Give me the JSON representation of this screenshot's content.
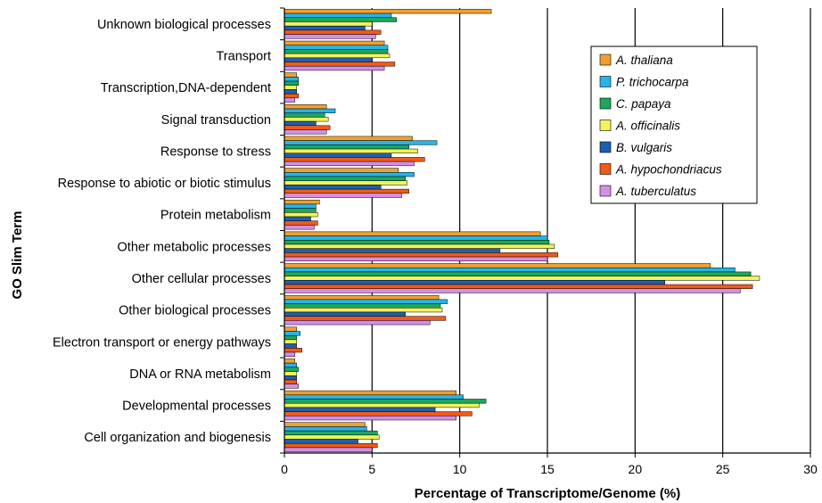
{
  "chart_data": {
    "type": "bar",
    "orientation": "horizontal",
    "title": "",
    "xlabel": "Percentage of Transcriptome/Genome (%)",
    "ylabel": "GO Slim Term",
    "xlim": [
      0,
      30
    ],
    "xticks": [
      "0",
      "5",
      "10",
      "15",
      "20",
      "25",
      "30"
    ],
    "grid": "vertical",
    "legend_position": "top-right",
    "categories": [
      "Unknown biological processes",
      "Transport",
      "Transcription,DNA-dependent",
      "Signal transduction",
      "Response to stress",
      "Response to abiotic or biotic stimulus",
      "Protein metabolism",
      "Other metabolic processes",
      "Other cellular processes",
      "Other biological processes",
      "Electron transport or energy pathways",
      "DNA or RNA metabolism",
      "Developmental processes",
      "Cell organization and biogenesis"
    ],
    "series": [
      {
        "name": "A. thaliana",
        "color": "#f0a030",
        "values": [
          11.8,
          5.7,
          0.7,
          2.4,
          7.3,
          6.5,
          2.0,
          14.6,
          24.3,
          8.8,
          0.7,
          0.6,
          9.8,
          4.6
        ]
      },
      {
        "name": "P. trichocarpa",
        "color": "#25b5e8",
        "values": [
          6.1,
          5.9,
          0.8,
          2.9,
          8.7,
          7.4,
          1.8,
          15.0,
          25.7,
          9.3,
          0.9,
          0.7,
          10.2,
          4.7
        ]
      },
      {
        "name": "C. papaya",
        "color": "#1fa65a",
        "values": [
          6.4,
          5.9,
          0.8,
          2.3,
          7.1,
          6.9,
          1.8,
          15.1,
          26.6,
          8.9,
          0.7,
          0.8,
          11.5,
          5.3
        ]
      },
      {
        "name": "A. officinalis",
        "color": "#f2f25a",
        "values": [
          5.0,
          6.0,
          0.7,
          2.5,
          7.6,
          7.0,
          1.9,
          15.4,
          27.1,
          9.0,
          0.7,
          0.7,
          11.1,
          5.4
        ]
      },
      {
        "name": "B. vulgaris",
        "color": "#1f5fb0",
        "values": [
          4.6,
          5.0,
          0.7,
          1.8,
          6.1,
          5.5,
          1.5,
          12.3,
          21.7,
          6.9,
          0.7,
          0.7,
          8.6,
          4.2
        ]
      },
      {
        "name": "A. hypochondriacus",
        "color": "#f05a1a",
        "values": [
          5.5,
          6.3,
          0.8,
          2.6,
          8.0,
          7.1,
          1.9,
          15.6,
          26.7,
          9.2,
          1.0,
          0.7,
          10.7,
          5.3
        ]
      },
      {
        "name": "A. tuberculatus",
        "color": "#d58ee6",
        "values": [
          5.2,
          5.7,
          0.6,
          2.4,
          7.4,
          6.7,
          1.7,
          15.0,
          26.0,
          8.3,
          0.6,
          0.8,
          9.8,
          5.0
        ]
      }
    ]
  }
}
